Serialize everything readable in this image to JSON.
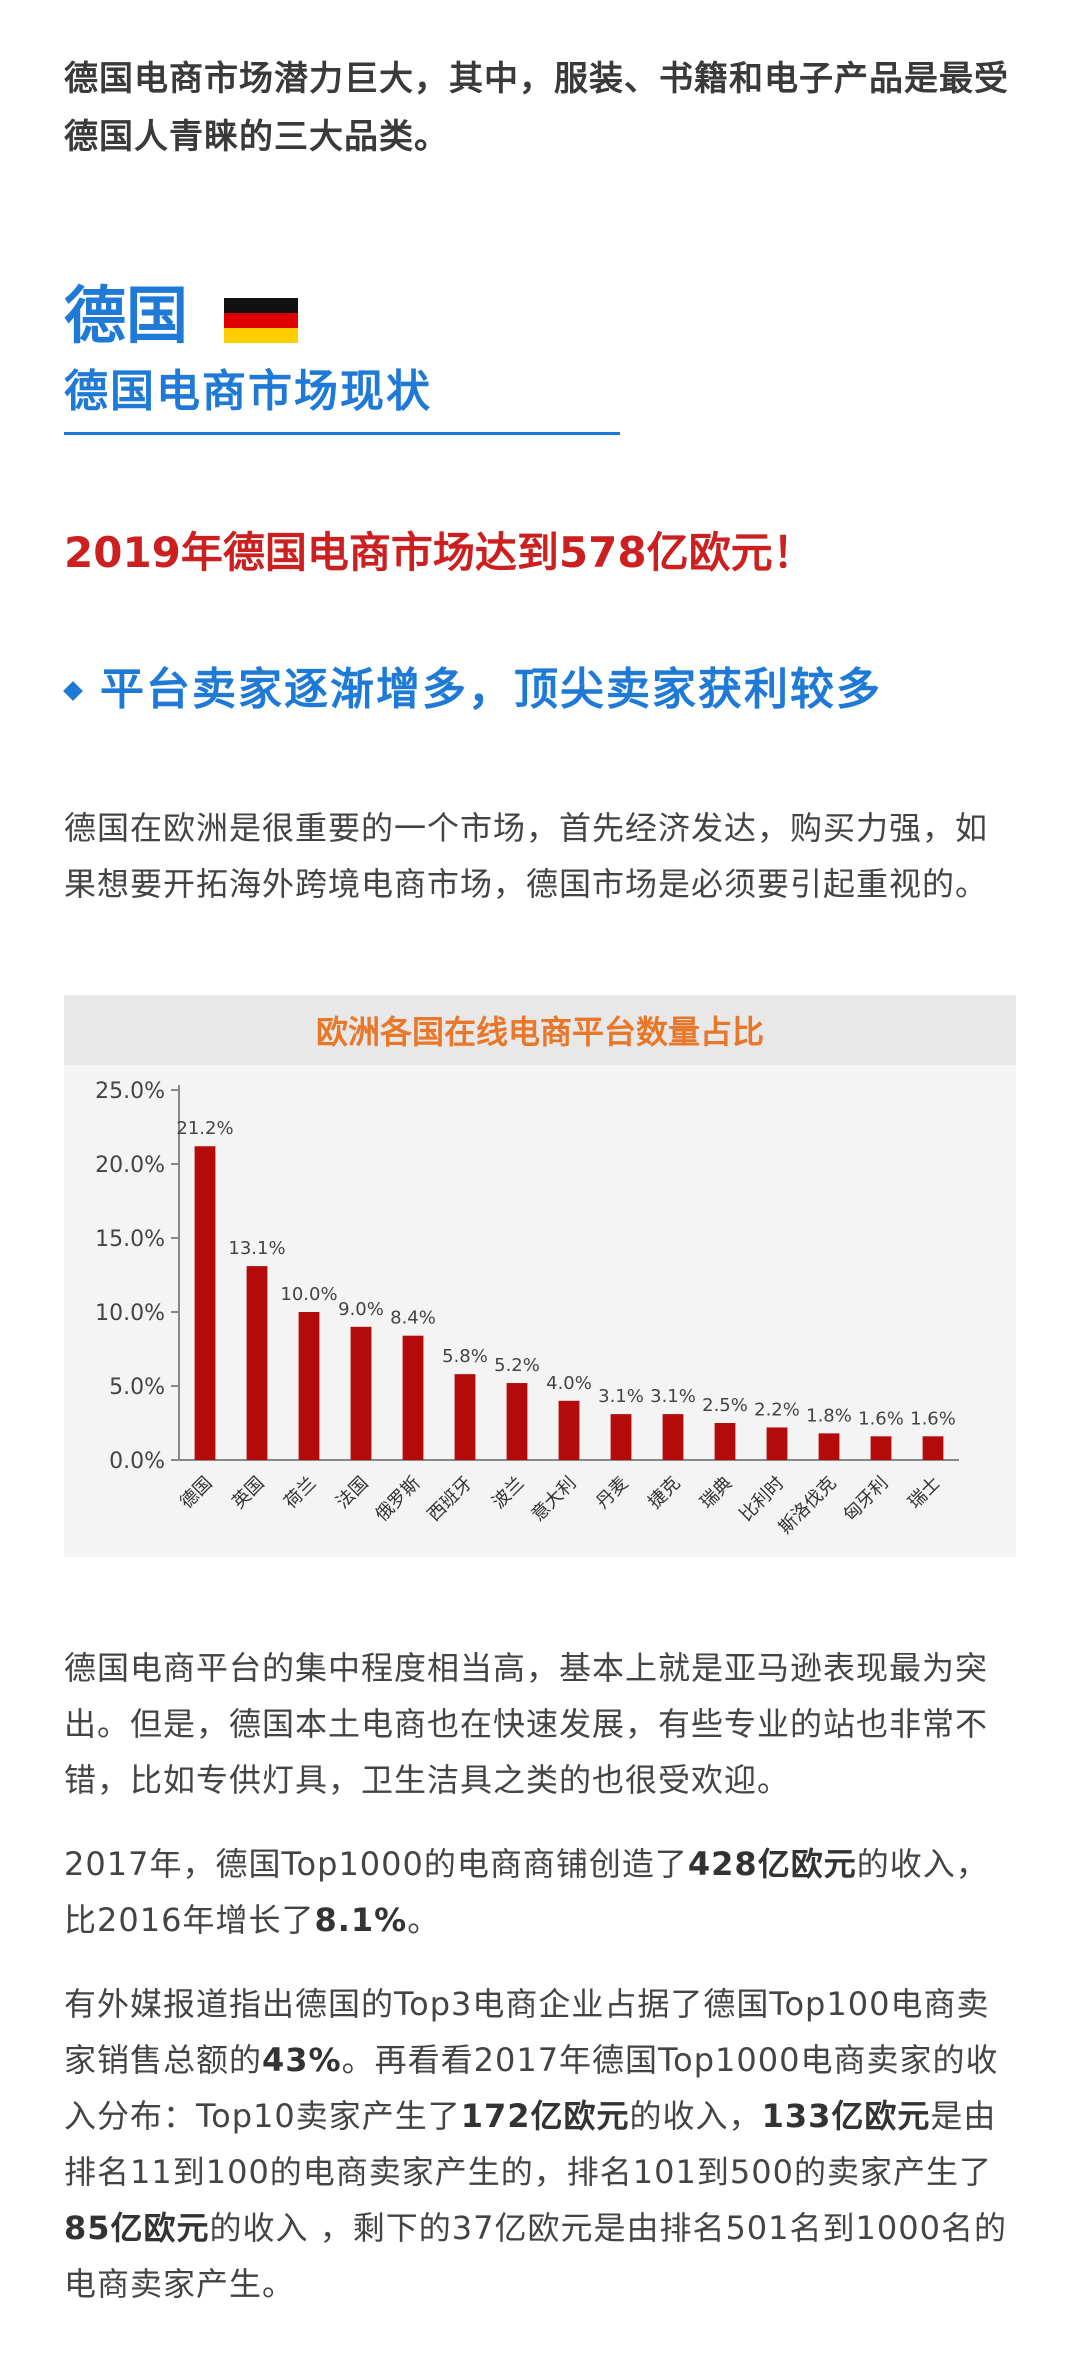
{
  "intro": "德国电商市场潜力巨大，其中，服装、书籍和电子产品是最受德国人青睐的三大品类。",
  "section": {
    "country": "德国",
    "subtitle": "德国电商市场现状",
    "accent_color": "#1e7ad6"
  },
  "headline": "2019年德国电商市场达到578亿欧元！",
  "subheading": "平台卖家逐渐增多，顶尖卖家获利较多",
  "paragraph1": "德国在欧洲是很重要的一个市场，首先经济发达，购买力强，如果想要开拓海外跨境电商市场，德国市场是必须要引起重视的。",
  "chart_data": {
    "type": "bar",
    "title": "欧洲各国在线电商平台数量占比",
    "categories": [
      "德国",
      "英国",
      "荷兰",
      "法国",
      "俄罗斯",
      "西班牙",
      "波兰",
      "意大利",
      "丹麦",
      "捷克",
      "瑞典",
      "比利时",
      "斯洛伐克",
      "匈牙利",
      "瑞士"
    ],
    "values": [
      21.2,
      13.1,
      10.0,
      9.0,
      8.4,
      5.8,
      5.2,
      4.0,
      3.1,
      3.1,
      2.5,
      2.2,
      1.8,
      1.6,
      1.6
    ],
    "labels": [
      "21.2%",
      "13.1%",
      "10.0%",
      "9.0%",
      "8.4%",
      "5.8%",
      "5.2%",
      "4.0%",
      "3.1%",
      "3.1%",
      "2.5%",
      "2.2%",
      "1.8%",
      "1.6%",
      "1.6%"
    ],
    "yticks": [
      "0.0%",
      "5.0%",
      "10.0%",
      "15.0%",
      "20.0%",
      "25.0%"
    ],
    "ylim": [
      0,
      25
    ],
    "bar_color": "#b50a0a",
    "title_color": "#e8772a",
    "grid": false
  },
  "paragraph2": "德国电商平台的集中程度相当高，基本上就是亚马逊表现最为突出。但是，德国本土电商也在快速发展，有些专业的站也非常不错，比如专供灯具，卫生洁具之类的也很受欢迎。",
  "paragraph3": {
    "t1": "2017年，德国Top1000的电商商铺创造了",
    "b1": "428亿欧元",
    "t2": "的收入，比2016年增长了",
    "b2": "8.1%",
    "t3": "。"
  },
  "paragraph4": {
    "t1": "有外媒报道指出德国的Top3电商企业占据了德国Top100电商卖家销售总额的",
    "b1": "43%",
    "t2": "。再看看2017年德国Top1000电商卖家的收入分布：Top10卖家产生了",
    "b2": "172亿欧元",
    "t3": "的收入，",
    "b3": "133亿欧元",
    "t4": "是由排名11到100的电商卖家产生的，排名101到500的卖家产生了",
    "b4": "85亿欧元",
    "t5": "的收入 ，剩下的37亿欧元是由排名501名到1000名的电商卖家产生。"
  }
}
